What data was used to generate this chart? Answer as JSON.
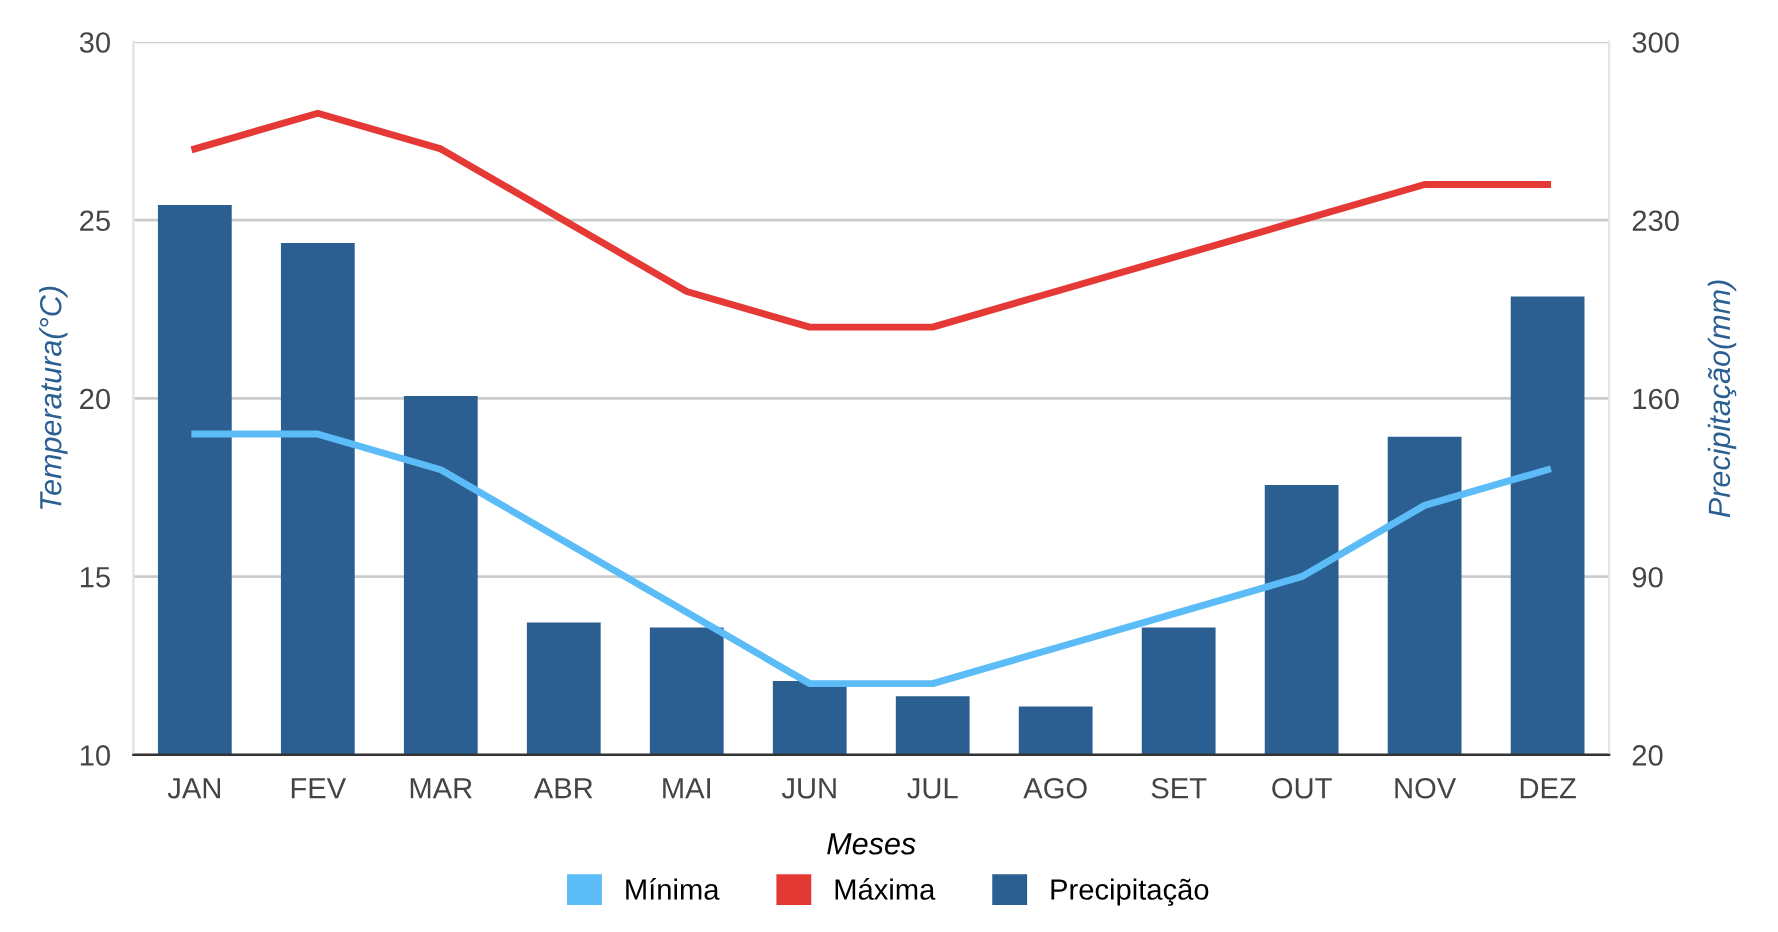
{
  "chart_data": {
    "type": "line",
    "xlabel": "Meses",
    "ylabel": "Temperatura(°C)",
    "y2label": "Precipitação(mm)",
    "categories": [
      "JAN",
      "FEV",
      "MAR",
      "ABR",
      "MAI",
      "JUN",
      "JUL",
      "AGO",
      "SET",
      "OUT",
      "NOV",
      "DEZ"
    ],
    "series": [
      {
        "name": "Mínima",
        "color": "#5bbcf7",
        "values": [
          19,
          19,
          18,
          16,
          14,
          12,
          12,
          13,
          14,
          15,
          17,
          18
        ]
      },
      {
        "name": "Máxima",
        "color": "#e53935",
        "values": [
          27,
          28,
          27,
          25,
          23,
          22,
          22,
          23,
          24,
          25,
          26,
          26
        ]
      },
      {
        "name": "Precipitação",
        "type": "bar",
        "axis": "y2",
        "color": "#2c5f91",
        "values": [
          236,
          221,
          161,
          72,
          70,
          49,
          43,
          39,
          70,
          126,
          145,
          200
        ]
      }
    ],
    "ylim": [
      10,
      30
    ],
    "yticks": [
      10,
      15,
      20,
      25,
      30
    ],
    "y2lim": [
      20,
      300
    ],
    "y2ticks": [
      20,
      90,
      160,
      230,
      300
    ],
    "grid": "y",
    "legend": "bottom",
    "line_style": "solid",
    "marker": "none"
  }
}
